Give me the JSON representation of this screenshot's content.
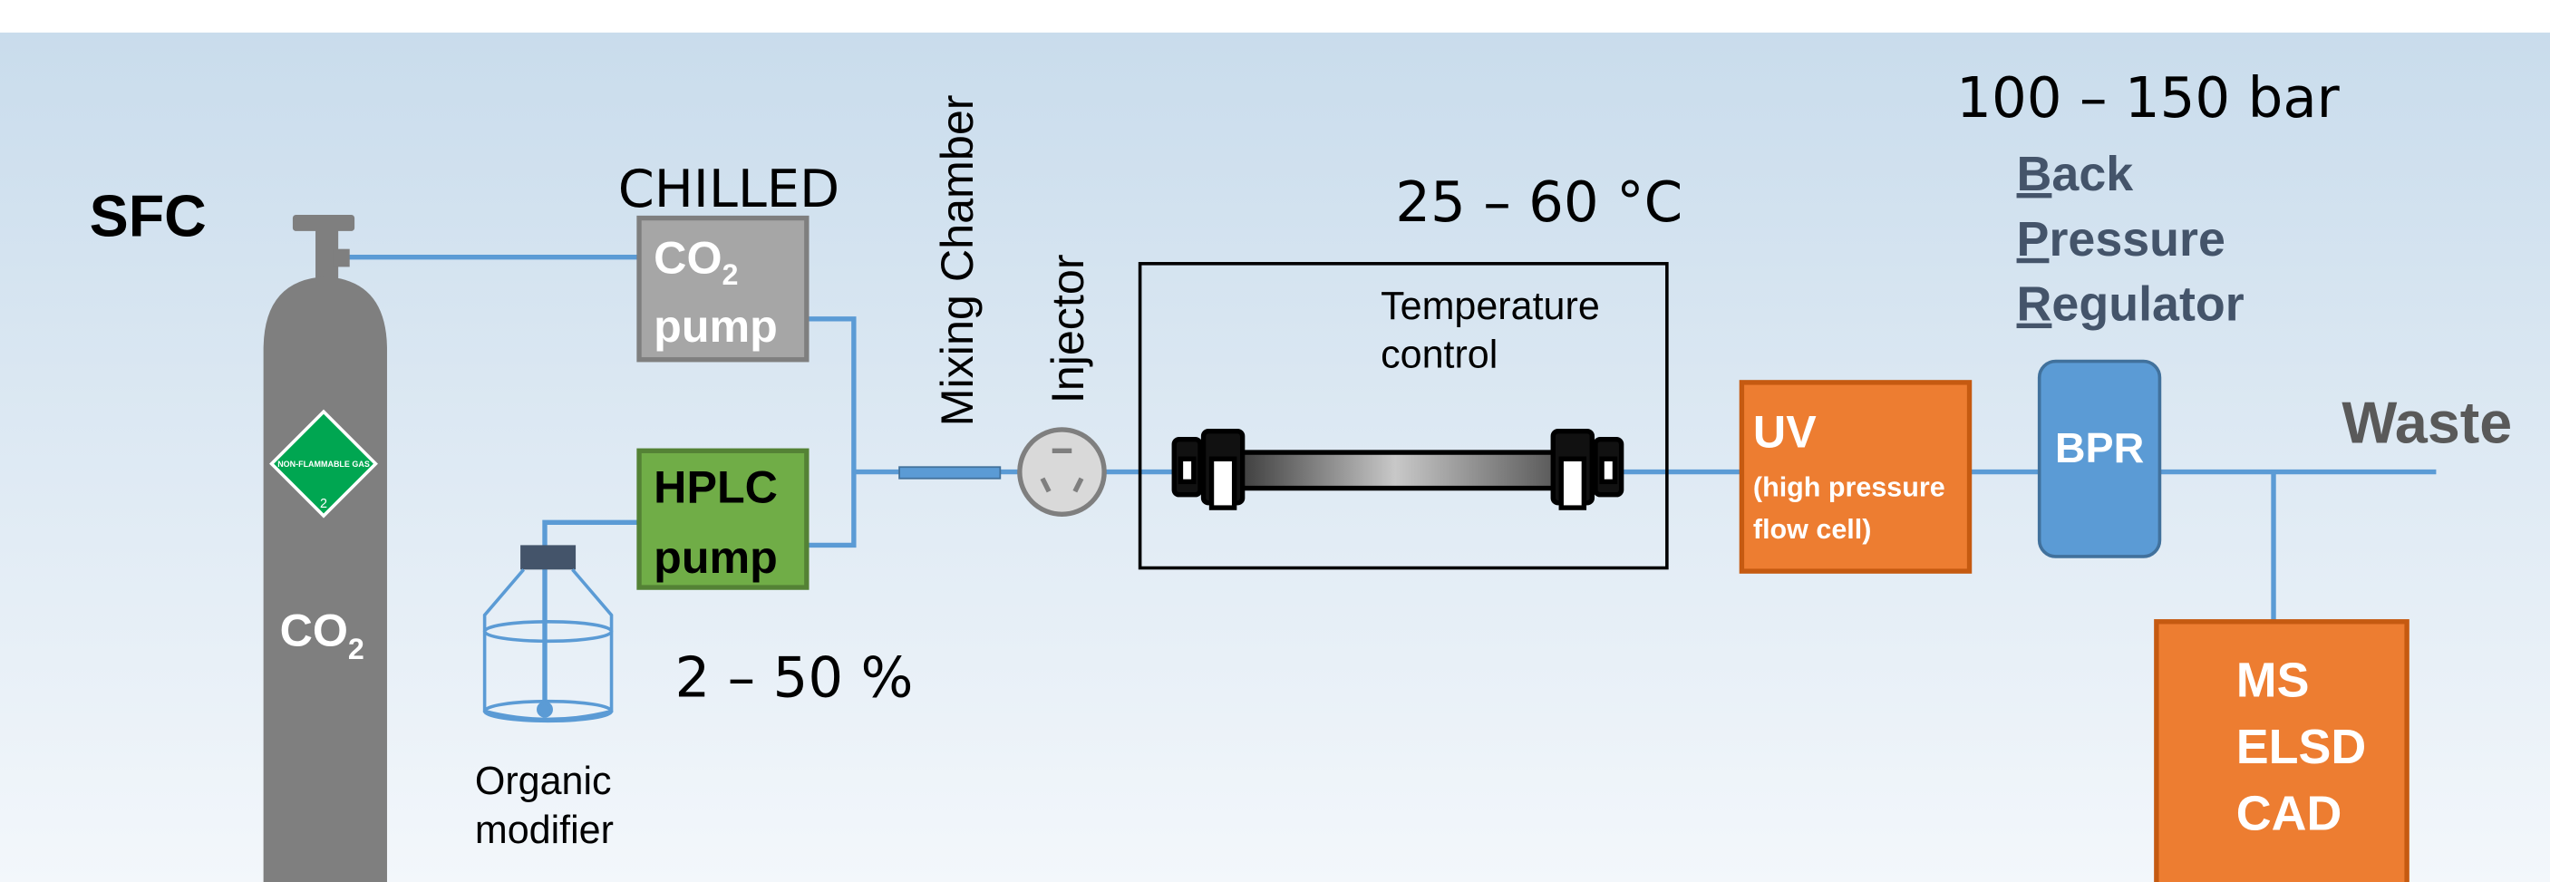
{
  "title": "SFC",
  "cylinder": {
    "label": "CO",
    "label_sub": "2",
    "hazard_text": "NON-FLAMMABLE GAS",
    "hazard_class": "2"
  },
  "co2_pump": {
    "note": "CHILLED",
    "label": "CO",
    "label_sub": "2",
    "label_line2": "pump"
  },
  "hplc_pump": {
    "label": "HPLC",
    "label_line2": "pump"
  },
  "modifier": {
    "percent": "2 – 50 %",
    "label_line1": "Organic",
    "label_line2": "modifier"
  },
  "mixing_chamber": {
    "label": "Mixing Chamber"
  },
  "injector": {
    "label": "Injector"
  },
  "column_oven": {
    "temperature": "25 – 60 °C",
    "label_line1": "Temperature",
    "label_line2": "control"
  },
  "uv": {
    "label": "UV",
    "detail_line1": "(high pressure",
    "detail_line2": "flow cell)"
  },
  "bpr": {
    "label": "BPR",
    "pressure": "100 – 150 bar",
    "full_name": [
      {
        "initial": "B",
        "rest": "ack"
      },
      {
        "initial": "P",
        "rest": "ressure"
      },
      {
        "initial": "R",
        "rest": "egulator"
      }
    ]
  },
  "waste": {
    "label": "Waste"
  },
  "detectors": {
    "lines": [
      "MS",
      "ELSD",
      "CAD"
    ]
  }
}
